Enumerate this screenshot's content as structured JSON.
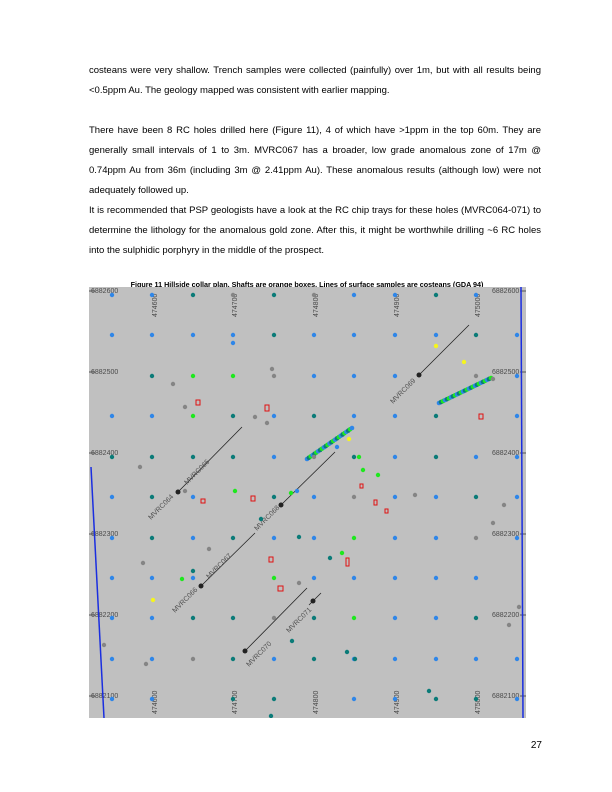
{
  "paragraphs": [
    "costeans were very shallow.  Trench samples were collected (painfully) over 1m, but with all results being <0.5ppm Au.  The geology mapped was consistent with earlier mapping.",
    "There have been 8 RC holes drilled here (Figure 11), 4 of which have >1ppm in the top 60m.  They are generally small intervals of 1 to 3m.  MVRC067 has a broader, low grade anomalous zone of 17m @ 0.74ppm Au from 36m (including 3m @ 2.41ppm Au).   These anomalous results (although low) were not adequately followed up.",
    "It is recommended that PSP geologists have a look at the RC chip trays for these holes (MVRC064-071) to determine the lithology for the anomalous gold zone.  After this, it might be worthwhile drilling ~6 RC holes into the sulphidic porphyry in the middle of the prospect."
  ],
  "figure": {
    "caption": "Figure 11 Hillside collar plan.  Shafts are orange boxes.  Lines of surface samples are costeans (GDA 94)",
    "northings": [
      "6882600",
      "6882500",
      "6882400",
      "6882300",
      "6882200",
      "6882100"
    ],
    "eastings": [
      "474600",
      "474700",
      "474800",
      "474900",
      "475000"
    ],
    "holes": [
      "MVRC064",
      "MVRC065",
      "MVRC066",
      "MVRC067",
      "MVRC068",
      "MVRC069",
      "MVRC070",
      "MVRC071"
    ],
    "colors": {
      "background": "#c0c0c0",
      "dot_blue": "#2f86e8",
      "dot_teal": "#0b7b78",
      "dot_green": "#1ee81e",
      "dot_gray": "#858585",
      "dot_yellow": "#f5f51e",
      "shaft": "#e01010",
      "boundary": "#1a2ee0"
    }
  },
  "page_number": "27"
}
